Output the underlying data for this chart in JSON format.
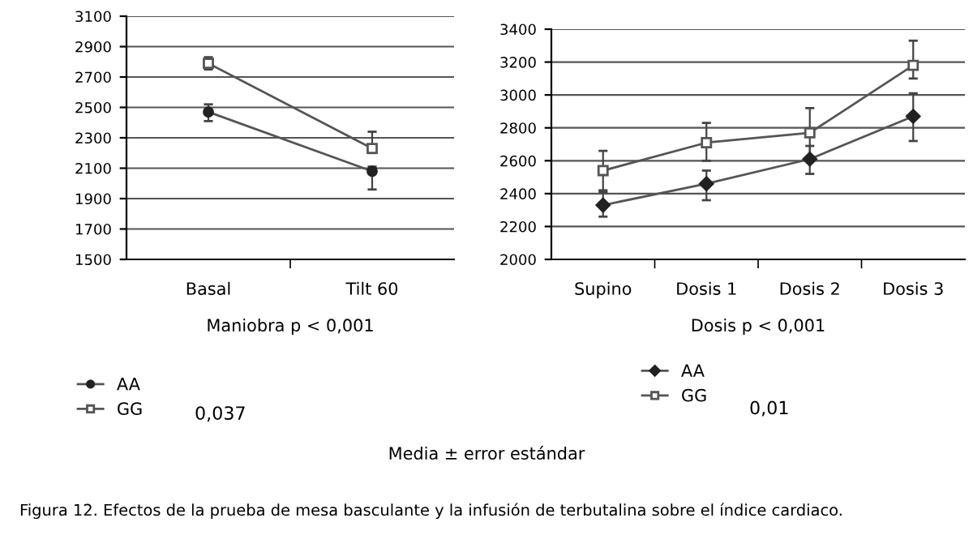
{
  "chart_data": [
    {
      "type": "line",
      "xlabel": "Maniobra p < 0,001",
      "categories": [
        "Basal",
        "Tilt 60"
      ],
      "series": [
        {
          "name": "AA",
          "color": "#222222",
          "marker": "circle",
          "values": [
            2470,
            2080
          ],
          "errors": [
            [
              2410,
              2520
            ],
            [
              1960,
              2110
            ]
          ]
        },
        {
          "name": "GG",
          "color": "#555555",
          "marker": "square",
          "values": [
            2790,
            2230
          ],
          "errors": [
            [
              2750,
              2830
            ],
            [
              2200,
              2340
            ]
          ]
        }
      ],
      "ylim": [
        1500,
        3100
      ],
      "yticks": [
        1500,
        1700,
        1900,
        2100,
        2300,
        2500,
        2700,
        2900,
        3100
      ],
      "grid": "y",
      "legend": "bottom",
      "annotations": [
        "0,037",
        "Media ± error estándar",
        "Figura 12. Efectos de la prueba de mesa basculante y la infusión de terbutalina sobre el índice cardiaco."
      ]
    },
    {
      "type": "line",
      "xlabel": "Dosis p < 0,001",
      "categories": [
        "Supino",
        "Dosis 1",
        "Dosis 2",
        "Dosis 3"
      ],
      "series": [
        {
          "name": "AA",
          "color": "#222222",
          "marker": "diamond",
          "values": [
            2330,
            2460,
            2610,
            2870
          ],
          "errors": [
            [
              2260,
              2410
            ],
            [
              2360,
              2540
            ],
            [
              2520,
              2690
            ],
            [
              2720,
              3010
            ]
          ]
        },
        {
          "name": "GG",
          "color": "#555555",
          "marker": "square",
          "values": [
            2540,
            2710,
            2770,
            3180
          ],
          "errors": [
            [
              2420,
              2660
            ],
            [
              2600,
              2830
            ],
            [
              2620,
              2920
            ],
            [
              3100,
              3330
            ]
          ]
        }
      ],
      "ylim": [
        2000,
        3400
      ],
      "yticks": [
        2000,
        2200,
        2400,
        2600,
        2800,
        3000,
        3200,
        3400
      ],
      "grid": "y",
      "legend": "bottom",
      "annotations": [
        "0,01"
      ]
    }
  ]
}
